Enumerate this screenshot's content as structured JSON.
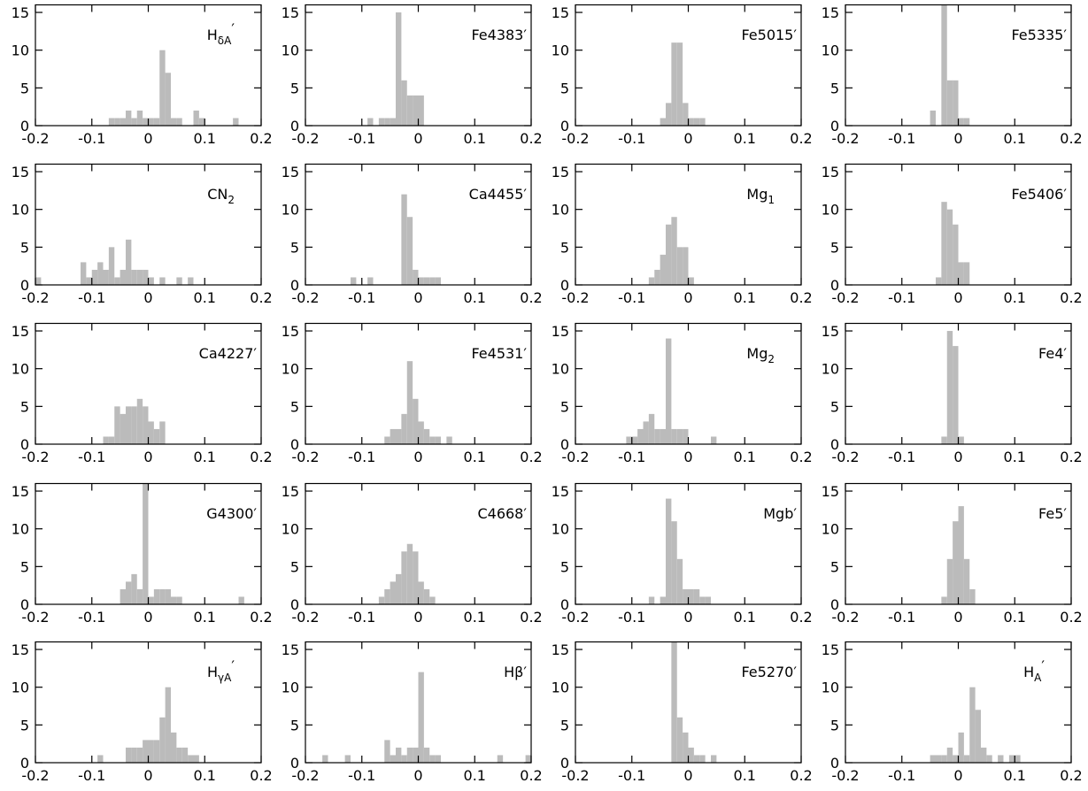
{
  "chart_data": [
    {
      "type": "histogram",
      "label": {
        "text": "H",
        "sub": "δA",
        "sup": "′"
      },
      "bins": [
        -0.07,
        -0.06,
        -0.05,
        -0.04,
        -0.03,
        -0.02,
        -0.01,
        0,
        0.01,
        0.02,
        0.03,
        0.04,
        0.05,
        0.06,
        0.07,
        0.08,
        0.09,
        0.1,
        0.11,
        0.12,
        0.13,
        0.14,
        0.15,
        0.16
      ],
      "counts": [
        1,
        1,
        1,
        2,
        1,
        2,
        1,
        1,
        1,
        10,
        7,
        1,
        1,
        0,
        0,
        2,
        1,
        0,
        0,
        0,
        0,
        0,
        1
      ],
      "color": "#bbbbbb",
      "xlim": [
        -0.2,
        0.2
      ],
      "xticks": [
        -0.2,
        -0.1,
        0,
        0.1,
        0.2
      ],
      "ylim": [
        0,
        16
      ],
      "yticks": [
        0,
        5,
        10,
        15
      ]
    },
    {
      "type": "histogram",
      "label": "Fe4383′",
      "bins": [
        -0.09,
        -0.08,
        -0.07,
        -0.06,
        -0.05,
        -0.04,
        -0.03,
        -0.02,
        -0.01,
        0,
        0.01
      ],
      "counts": [
        1,
        0,
        1,
        1,
        1,
        15,
        6,
        4,
        4,
        4
      ],
      "color": "#bbbbbb",
      "xlim": [
        -0.2,
        0.2
      ],
      "xticks": [
        -0.2,
        -0.1,
        0,
        0.1,
        0.2
      ],
      "ylim": [
        0,
        16
      ],
      "yticks": [
        0,
        5,
        10,
        15
      ]
    },
    {
      "type": "histogram",
      "label": "Fe5015′",
      "bins": [
        -0.05,
        -0.04,
        -0.03,
        -0.02,
        -0.01,
        0,
        0.01,
        0.02,
        0.03
      ],
      "counts": [
        1,
        3,
        11,
        11,
        3,
        1,
        1,
        1
      ],
      "color": "#bbbbbb",
      "xlim": [
        -0.2,
        0.2
      ],
      "xticks": [
        -0.2,
        -0.1,
        0,
        0.1,
        0.2
      ],
      "ylim": [
        0,
        16
      ],
      "yticks": [
        0,
        5,
        10,
        15
      ]
    },
    {
      "type": "histogram",
      "label": "Fe5335′",
      "bins": [
        -0.05,
        -0.04,
        -0.03,
        -0.02,
        -0.01,
        0,
        0.01,
        0.02
      ],
      "counts": [
        2,
        0,
        16,
        6,
        6,
        1,
        1
      ],
      "color": "#bbbbbb",
      "xlim": [
        -0.2,
        0.2
      ],
      "xticks": [
        -0.2,
        -0.1,
        0,
        0.1,
        0.2
      ],
      "ylim": [
        0,
        16
      ],
      "yticks": [
        0,
        5,
        10,
        15
      ]
    },
    {
      "type": "histogram",
      "label": {
        "text": "CN",
        "sub": "2"
      },
      "bins": [
        -0.2,
        -0.19,
        -0.18,
        -0.17,
        -0.16,
        -0.15,
        -0.14,
        -0.13,
        -0.12,
        -0.11,
        -0.1,
        -0.09,
        -0.08,
        -0.07,
        -0.06,
        -0.05,
        -0.04,
        -0.03,
        -0.02,
        -0.01,
        0,
        0.01,
        0.02,
        0.03,
        0.04,
        0.05,
        0.06,
        0.07,
        0.08
      ],
      "counts": [
        1,
        0,
        0,
        0,
        0,
        0,
        0,
        0,
        3,
        1,
        2,
        3,
        2,
        5,
        1,
        2,
        6,
        2,
        2,
        2,
        1,
        0,
        1,
        0,
        0,
        1,
        0,
        1
      ],
      "color": "#bbbbbb",
      "xlim": [
        -0.2,
        0.2
      ],
      "xticks": [
        -0.2,
        -0.1,
        0,
        0.1,
        0.2
      ],
      "ylim": [
        0,
        16
      ],
      "yticks": [
        0,
        5,
        10,
        15
      ]
    },
    {
      "type": "histogram",
      "label": "Ca4455′",
      "bins": [
        -0.12,
        -0.11,
        -0.1,
        -0.09,
        -0.08,
        -0.07,
        -0.06,
        -0.05,
        -0.04,
        -0.03,
        -0.02,
        -0.01,
        0,
        0.01,
        0.02,
        0.03,
        0.04
      ],
      "counts": [
        1,
        0,
        0,
        1,
        0,
        0,
        0,
        0,
        0,
        12,
        9,
        2,
        1,
        1,
        1,
        1
      ],
      "color": "#bbbbbb",
      "xlim": [
        -0.2,
        0.2
      ],
      "xticks": [
        -0.2,
        -0.1,
        0,
        0.1,
        0.2
      ],
      "ylim": [
        0,
        16
      ],
      "yticks": [
        0,
        5,
        10,
        15
      ]
    },
    {
      "type": "histogram",
      "label": {
        "text": "Mg",
        "sub": "1"
      },
      "bins": [
        -0.07,
        -0.06,
        -0.05,
        -0.04,
        -0.03,
        -0.02,
        -0.01,
        0,
        0.01
      ],
      "counts": [
        1,
        2,
        4,
        8,
        9,
        5,
        5,
        1
      ],
      "color": "#bbbbbb",
      "xlim": [
        -0.2,
        0.2
      ],
      "xticks": [
        -0.2,
        -0.1,
        0,
        0.1,
        0.2
      ],
      "ylim": [
        0,
        16
      ],
      "yticks": [
        0,
        5,
        10,
        15
      ]
    },
    {
      "type": "histogram",
      "label": "Fe5406′",
      "bins": [
        -0.04,
        -0.03,
        -0.02,
        -0.01,
        0,
        0.01,
        0.02
      ],
      "counts": [
        1,
        11,
        10,
        8,
        3,
        3
      ],
      "color": "#bbbbbb",
      "xlim": [
        -0.2,
        0.2
      ],
      "xticks": [
        -0.2,
        -0.1,
        0,
        0.1,
        0.2
      ],
      "ylim": [
        0,
        16
      ],
      "yticks": [
        0,
        5,
        10,
        15
      ]
    },
    {
      "type": "histogram",
      "label": "Ca4227′",
      "bins": [
        -0.08,
        -0.07,
        -0.06,
        -0.05,
        -0.04,
        -0.03,
        -0.02,
        -0.01,
        0,
        0.01,
        0.02,
        0.03
      ],
      "counts": [
        1,
        1,
        5,
        4,
        5,
        5,
        6,
        5,
        3,
        2,
        3
      ],
      "color": "#bbbbbb",
      "xlim": [
        -0.2,
        0.2
      ],
      "xticks": [
        -0.2,
        -0.1,
        0,
        0.1,
        0.2
      ],
      "ylim": [
        0,
        16
      ],
      "yticks": [
        0,
        5,
        10,
        15
      ]
    },
    {
      "type": "histogram",
      "label": "Fe4531′",
      "bins": [
        -0.06,
        -0.05,
        -0.04,
        -0.03,
        -0.02,
        -0.01,
        0,
        0.01,
        0.02,
        0.03,
        0.04,
        0.05,
        0.06
      ],
      "counts": [
        1,
        2,
        2,
        4,
        11,
        6,
        3,
        2,
        1,
        1,
        0,
        1
      ],
      "color": "#bbbbbb",
      "xlim": [
        -0.2,
        0.2
      ],
      "xticks": [
        -0.2,
        -0.1,
        0,
        0.1,
        0.2
      ],
      "ylim": [
        0,
        16
      ],
      "yticks": [
        0,
        5,
        10,
        15
      ]
    },
    {
      "type": "histogram",
      "label": {
        "text": "Mg",
        "sub": "2"
      },
      "bins": [
        -0.11,
        -0.1,
        -0.09,
        -0.08,
        -0.07,
        -0.06,
        -0.05,
        -0.04,
        -0.03,
        -0.02,
        -0.01,
        0,
        0.01,
        0.02,
        0.03,
        0.04,
        0.05
      ],
      "counts": [
        1,
        1,
        2,
        3,
        4,
        2,
        2,
        14,
        2,
        2,
        2,
        0,
        0,
        0,
        0,
        1
      ],
      "color": "#bbbbbb",
      "xlim": [
        -0.2,
        0.2
      ],
      "xticks": [
        -0.2,
        -0.1,
        0,
        0.1,
        0.2
      ],
      "ylim": [
        0,
        16
      ],
      "yticks": [
        0,
        5,
        10,
        15
      ]
    },
    {
      "type": "histogram",
      "label": "Fe4′",
      "bins": [
        -0.03,
        -0.02,
        -0.01,
        0,
        0.01
      ],
      "counts": [
        1,
        15,
        13,
        1
      ],
      "color": "#bbbbbb",
      "xlim": [
        -0.2,
        0.2
      ],
      "xticks": [
        -0.2,
        -0.1,
        0,
        0.1,
        0.2
      ],
      "ylim": [
        0,
        16
      ],
      "yticks": [
        0,
        5,
        10,
        15
      ]
    },
    {
      "type": "histogram",
      "label": "G4300′",
      "bins": [
        -0.05,
        -0.04,
        -0.03,
        -0.02,
        -0.01,
        0,
        0.01,
        0.02,
        0.03,
        0.04,
        0.05,
        0.06,
        0.07,
        0.08,
        0.09,
        0.1,
        0.11,
        0.12,
        0.13,
        0.14,
        0.15,
        0.16,
        0.17
      ],
      "counts": [
        2,
        3,
        4,
        2,
        16,
        1,
        2,
        2,
        2,
        1,
        1,
        0,
        0,
        0,
        0,
        0,
        0,
        0,
        0,
        0,
        0,
        1
      ],
      "color": "#bbbbbb",
      "xlim": [
        -0.2,
        0.2
      ],
      "xticks": [
        -0.2,
        -0.1,
        0,
        0.1,
        0.2
      ],
      "ylim": [
        0,
        16
      ],
      "yticks": [
        0,
        5,
        10,
        15
      ]
    },
    {
      "type": "histogram",
      "label": "C4668′",
      "bins": [
        -0.07,
        -0.06,
        -0.05,
        -0.04,
        -0.03,
        -0.02,
        -0.01,
        0,
        0.01,
        0.02,
        0.03
      ],
      "counts": [
        1,
        2,
        3,
        4,
        7,
        8,
        7,
        3,
        2,
        1
      ],
      "color": "#bbbbbb",
      "xlim": [
        -0.2,
        0.2
      ],
      "xticks": [
        -0.2,
        -0.1,
        0,
        0.1,
        0.2
      ],
      "ylim": [
        0,
        16
      ],
      "yticks": [
        0,
        5,
        10,
        15
      ]
    },
    {
      "type": "histogram",
      "label": "Mgb′",
      "bins": [
        -0.07,
        -0.06,
        -0.05,
        -0.04,
        -0.03,
        -0.02,
        -0.01,
        0,
        0.01,
        0.02,
        0.03,
        0.04
      ],
      "counts": [
        1,
        0,
        1,
        14,
        11,
        6,
        2,
        2,
        2,
        1,
        1
      ],
      "color": "#bbbbbb",
      "xlim": [
        -0.2,
        0.2
      ],
      "xticks": [
        -0.2,
        -0.1,
        0,
        0.1,
        0.2
      ],
      "ylim": [
        0,
        16
      ],
      "yticks": [
        0,
        5,
        10,
        15
      ]
    },
    {
      "type": "histogram",
      "label": "Fe5′",
      "bins": [
        -0.03,
        -0.02,
        -0.01,
        0,
        0.01,
        0.02,
        0.03
      ],
      "counts": [
        1,
        6,
        11,
        13,
        6,
        2
      ],
      "color": "#bbbbbb",
      "xlim": [
        -0.2,
        0.2
      ],
      "xticks": [
        -0.2,
        -0.1,
        0,
        0.1,
        0.2
      ],
      "ylim": [
        0,
        16
      ],
      "yticks": [
        0,
        5,
        10,
        15
      ]
    },
    {
      "type": "histogram",
      "label": {
        "text": "H",
        "sub": "γA",
        "sup": "′"
      },
      "bins": [
        -0.09,
        -0.08,
        -0.07,
        -0.06,
        -0.05,
        -0.04,
        -0.03,
        -0.02,
        -0.01,
        0,
        0.01,
        0.02,
        0.03,
        0.04,
        0.05,
        0.06,
        0.07,
        0.08,
        0.09
      ],
      "counts": [
        1,
        0,
        0,
        0,
        0,
        2,
        2,
        2,
        3,
        3,
        3,
        6,
        10,
        4,
        2,
        2,
        1,
        1
      ],
      "color": "#bbbbbb",
      "xlim": [
        -0.2,
        0.2
      ],
      "xticks": [
        -0.2,
        -0.1,
        0,
        0.1,
        0.2
      ],
      "ylim": [
        0,
        16
      ],
      "yticks": [
        0,
        5,
        10,
        15
      ]
    },
    {
      "type": "histogram",
      "label": "Hβ′",
      "bins": [
        -0.17,
        -0.16,
        -0.15,
        -0.14,
        -0.13,
        -0.12,
        -0.11,
        -0.1,
        -0.09,
        -0.08,
        -0.07,
        -0.06,
        -0.05,
        -0.04,
        -0.03,
        -0.02,
        -0.01,
        0,
        0.01,
        0.02,
        0.03,
        0.04,
        0.05,
        0.06,
        0.07,
        0.08,
        0.09,
        0.1,
        0.11,
        0.12,
        0.13,
        0.14,
        0.15,
        0.16,
        0.17,
        0.18,
        0.19,
        0.2
      ],
      "counts": [
        1,
        0,
        0,
        0,
        1,
        0,
        0,
        0,
        0,
        0,
        0,
        3,
        1,
        2,
        1,
        2,
        2,
        12,
        2,
        1,
        1,
        0,
        0,
        0,
        0,
        0,
        0,
        0,
        0,
        0,
        0,
        1,
        0,
        0,
        0,
        0,
        1
      ],
      "color": "#bbbbbb",
      "xlim": [
        -0.2,
        0.2
      ],
      "xticks": [
        -0.2,
        -0.1,
        0,
        0.1,
        0.2
      ],
      "ylim": [
        0,
        16
      ],
      "yticks": [
        0,
        5,
        10,
        15
      ]
    },
    {
      "type": "histogram",
      "label": "Fe5270′",
      "bins": [
        -0.03,
        -0.02,
        -0.01,
        0,
        0.01,
        0.02,
        0.03,
        0.04,
        0.05
      ],
      "counts": [
        16,
        6,
        4,
        2,
        1,
        1,
        0,
        1
      ],
      "color": "#bbbbbb",
      "xlim": [
        -0.2,
        0.2
      ],
      "xticks": [
        -0.2,
        -0.1,
        0,
        0.1,
        0.2
      ],
      "ylim": [
        0,
        16
      ],
      "yticks": [
        0,
        5,
        10,
        15
      ]
    },
    {
      "type": "histogram",
      "label": {
        "text": "H",
        "sub": "A",
        "sup": "′"
      },
      "bins": [
        -0.05,
        -0.04,
        -0.03,
        -0.02,
        -0.01,
        0,
        0.01,
        0.02,
        0.03,
        0.04,
        0.05,
        0.06,
        0.07,
        0.08,
        0.09,
        0.1,
        0.11
      ],
      "counts": [
        1,
        1,
        1,
        2,
        1,
        4,
        1,
        10,
        7,
        2,
        1,
        0,
        1,
        0,
        1,
        1
      ],
      "color": "#bbbbbb",
      "xlim": [
        -0.2,
        0.2
      ],
      "xticks": [
        -0.2,
        -0.1,
        0,
        0.1,
        0.2
      ],
      "ylim": [
        0,
        16
      ],
      "yticks": [
        0,
        5,
        10,
        15
      ]
    }
  ]
}
